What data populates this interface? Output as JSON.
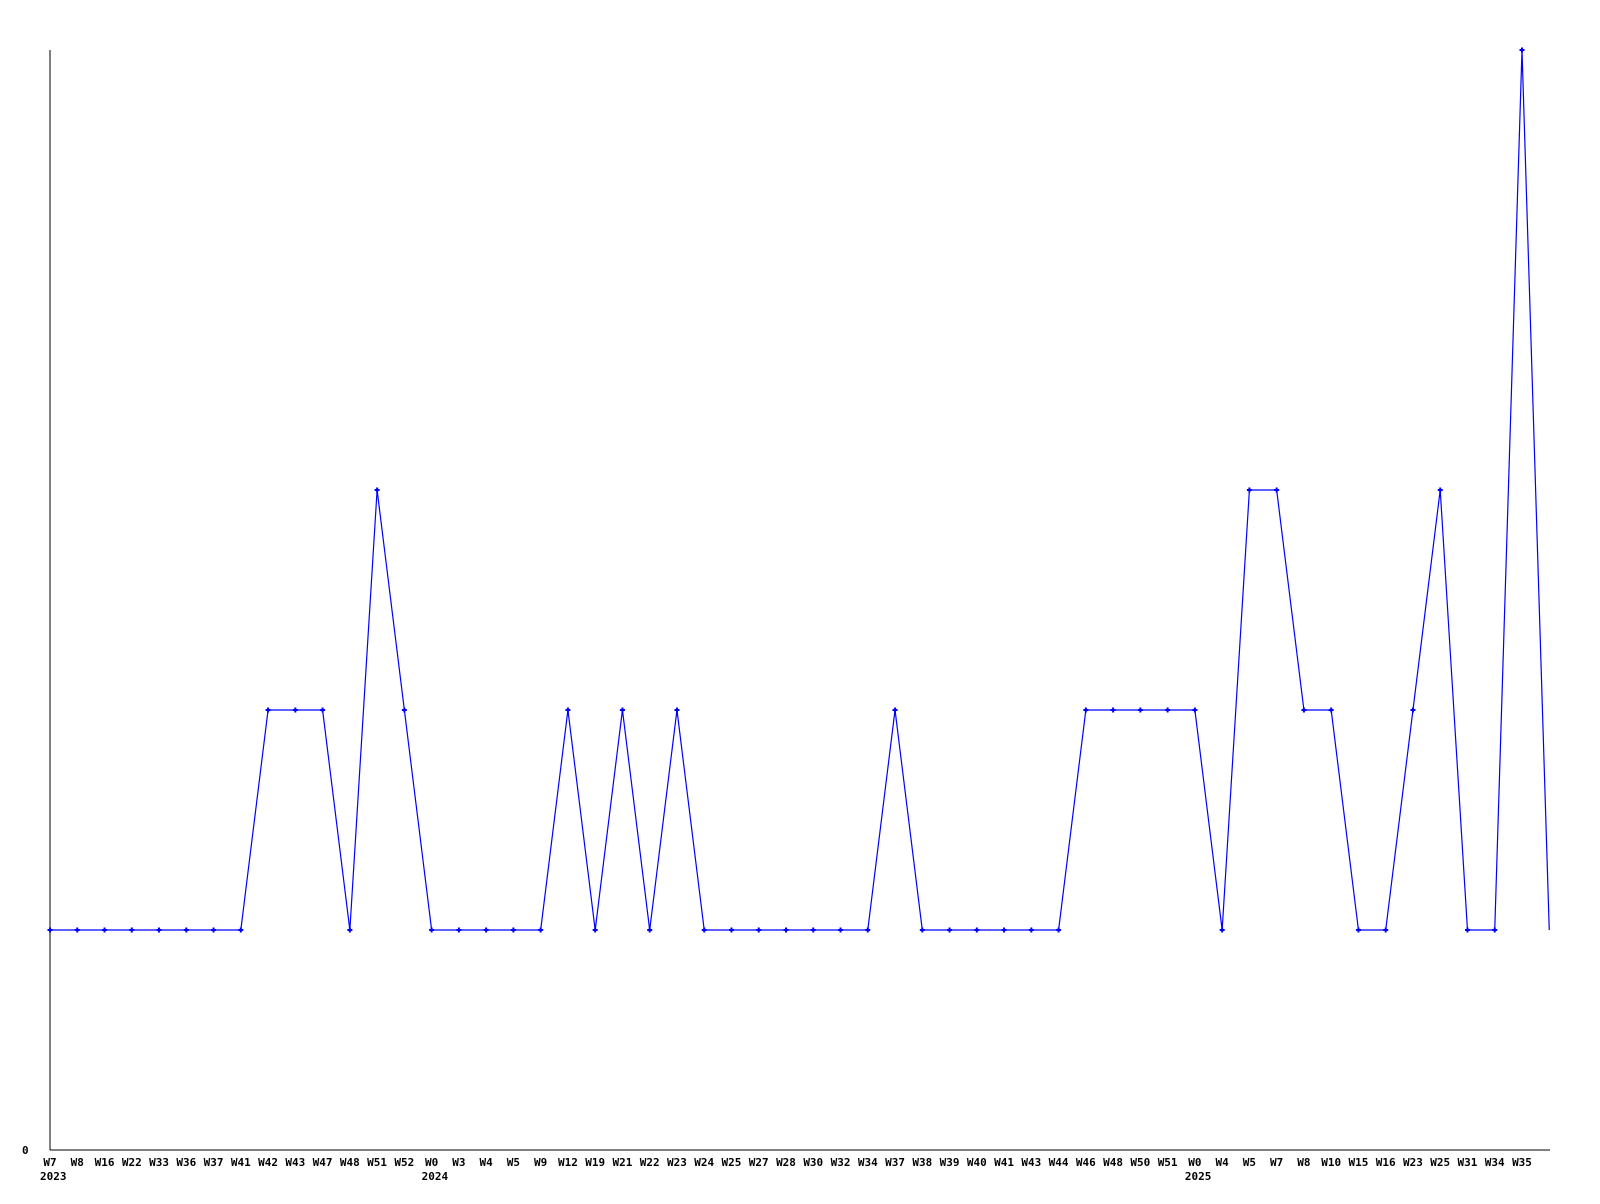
{
  "chart_data": {
    "type": "line",
    "title": "",
    "xlabel": "",
    "ylabel": "",
    "ylim": [
      0,
      5
    ],
    "y_tick_labels": [
      "0"
    ],
    "grid": false,
    "line_color": "#0000ff",
    "axis_color": "#000000",
    "x": [
      "W7",
      "W8",
      "W16",
      "W22",
      "W33",
      "W36",
      "W37",
      "W41",
      "W42",
      "W43",
      "W47",
      "W48",
      "W51",
      "W52",
      "W0",
      "W3",
      "W4",
      "W5",
      "W9",
      "W12",
      "W19",
      "W21",
      "W22",
      "W23",
      "W24",
      "W25",
      "W27",
      "W28",
      "W30",
      "W32",
      "W34",
      "W37",
      "W38",
      "W39",
      "W40",
      "W41",
      "W43",
      "W44",
      "W46",
      "W48",
      "W50",
      "W51",
      "W0",
      "W4",
      "W5",
      "W7",
      "W8",
      "W10",
      "W15",
      "W16",
      "W23",
      "W25",
      "W31",
      "W34",
      "W35",
      ""
    ],
    "year_labels": [
      {
        "index": 0,
        "label": "2023"
      },
      {
        "index": 14,
        "label": "2024"
      },
      {
        "index": 42,
        "label": "2025"
      }
    ],
    "values": [
      1,
      1,
      1,
      1,
      1,
      1,
      1,
      1,
      2,
      2,
      2,
      1,
      3,
      2,
      1,
      1,
      1,
      1,
      1,
      2,
      1,
      2,
      1,
      2,
      1,
      1,
      1,
      1,
      1,
      1,
      1,
      2,
      1,
      1,
      1,
      1,
      1,
      1,
      2,
      2,
      2,
      2,
      2,
      1,
      3,
      3,
      2,
      2,
      1,
      1,
      2,
      3,
      1,
      1,
      5,
      1
    ]
  }
}
